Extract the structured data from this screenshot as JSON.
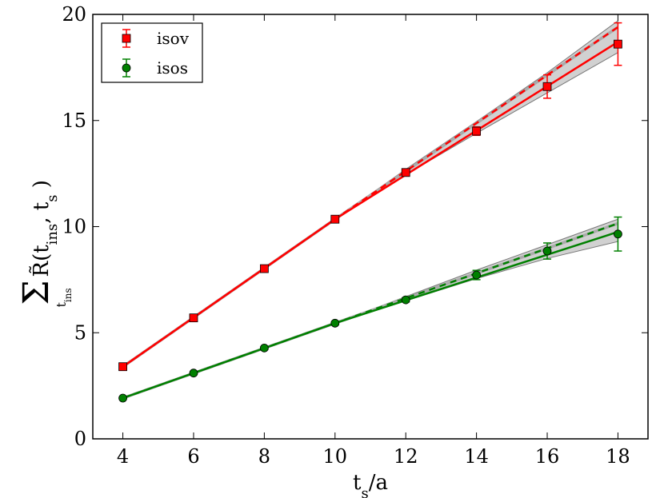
{
  "chart_data": {
    "type": "line",
    "xlabel": "t_s/a",
    "ylabel": "Σ_{t_ins} R̃(t_ins, t_s)",
    "xlim": [
      3.15,
      18.85
    ],
    "ylim": [
      0,
      20
    ],
    "x_ticks": [
      4,
      6,
      8,
      10,
      12,
      14,
      16,
      18
    ],
    "y_ticks": [
      0,
      5,
      10,
      15,
      20
    ],
    "grid": false,
    "legend_position": "top-left",
    "series": [
      {
        "name": "isov",
        "color": "#ff0000",
        "marker": "square",
        "x": [
          4,
          6,
          8,
          10,
          12,
          14,
          16,
          18
        ],
        "y": [
          3.4,
          5.7,
          8.02,
          10.35,
          12.55,
          14.5,
          16.6,
          18.6
        ],
        "err": [
          0.05,
          0.07,
          0.08,
          0.1,
          0.12,
          0.2,
          0.55,
          1.0
        ],
        "fit_solid": [
          [
            4,
            3.4
          ],
          [
            10,
            10.35
          ],
          [
            18,
            18.7
          ]
        ],
        "fit_dashed": [
          [
            4,
            3.4
          ],
          [
            10,
            10.35
          ],
          [
            18,
            19.4
          ]
        ],
        "band_upper": [
          [
            10,
            10.35
          ],
          [
            12,
            12.7
          ],
          [
            14,
            14.95
          ],
          [
            16,
            17.25
          ],
          [
            18,
            19.7
          ]
        ],
        "band_lower": [
          [
            10,
            10.35
          ],
          [
            12,
            12.45
          ],
          [
            14,
            14.4
          ],
          [
            16,
            16.3
          ],
          [
            18,
            18.2
          ]
        ]
      },
      {
        "name": "isos",
        "color": "#008000",
        "marker": "circle",
        "x": [
          4,
          6,
          8,
          10,
          12,
          14,
          16,
          18
        ],
        "y": [
          1.92,
          3.1,
          4.28,
          5.45,
          6.55,
          7.72,
          8.85,
          9.65
        ],
        "err": [
          0.04,
          0.05,
          0.06,
          0.08,
          0.1,
          0.22,
          0.38,
          0.8
        ],
        "fit_solid": [
          [
            4,
            1.92
          ],
          [
            10,
            5.45
          ],
          [
            18,
            9.75
          ]
        ],
        "fit_dashed": [
          [
            4,
            1.92
          ],
          [
            10,
            5.45
          ],
          [
            18,
            10.15
          ]
        ],
        "band_upper": [
          [
            10,
            5.45
          ],
          [
            12,
            6.7
          ],
          [
            14,
            7.95
          ],
          [
            16,
            9.15
          ],
          [
            18,
            10.35
          ]
        ],
        "band_lower": [
          [
            10,
            5.45
          ],
          [
            12,
            6.5
          ],
          [
            14,
            7.55
          ],
          [
            16,
            8.5
          ],
          [
            18,
            9.3
          ]
        ]
      }
    ]
  }
}
